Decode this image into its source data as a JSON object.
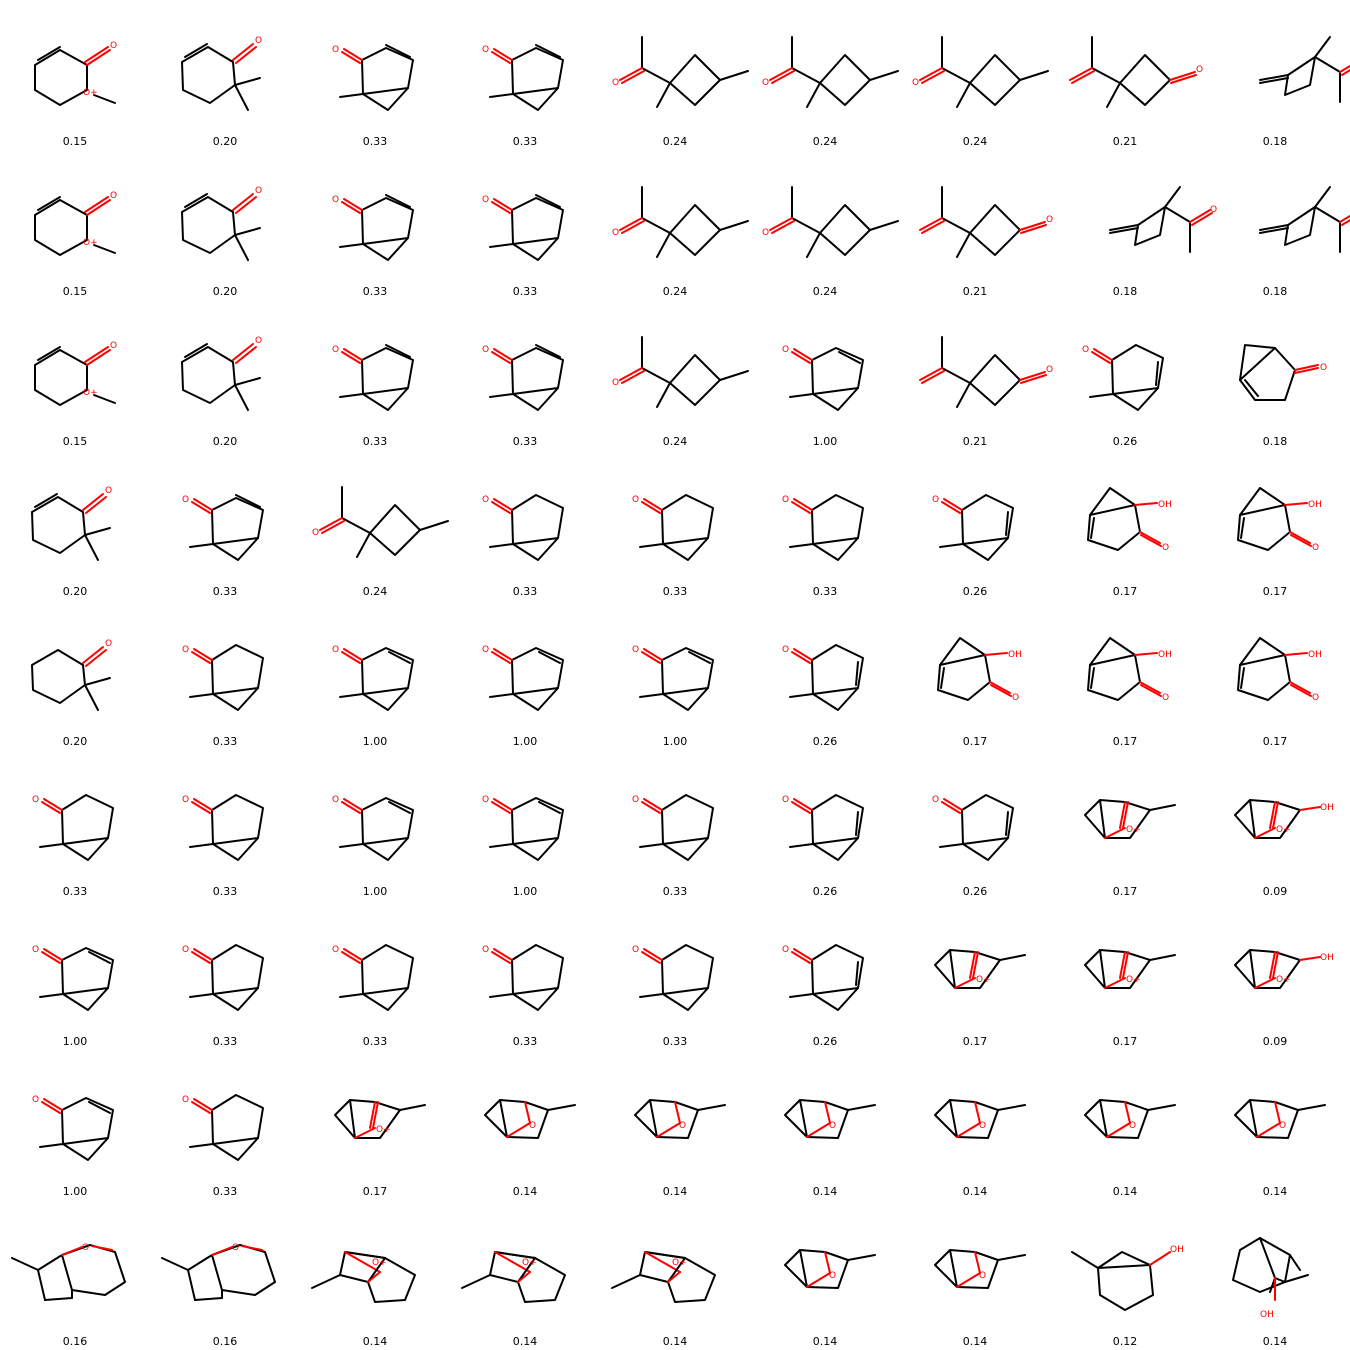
{
  "grid": {
    "rows": 9,
    "cols": 9,
    "cells": [
      {
        "mol": "lactone_yne",
        "score": "0.15"
      },
      {
        "mol": "cyclohexenone_yne",
        "score": "0.20"
      },
      {
        "mol": "bicyclic_ketone_yne",
        "score": "0.33"
      },
      {
        "mol": "bicyclic_ketone_yne",
        "score": "0.33"
      },
      {
        "mol": "acetyl_cyclobutane",
        "score": "0.24"
      },
      {
        "mol": "acetyl_cyclobutane",
        "score": "0.24"
      },
      {
        "mol": "acetyl_cyclobutane",
        "score": "0.24"
      },
      {
        "mol": "acetyl_cyclobutanone",
        "score": "0.21"
      },
      {
        "mol": "methylene_cyclobutane",
        "score": "0.18"
      },
      {
        "mol": "lactone_yne",
        "score": "0.15"
      },
      {
        "mol": "cyclohexenone_yne",
        "score": "0.20"
      },
      {
        "mol": "bicyclic_ketone_yne",
        "score": "0.33"
      },
      {
        "mol": "bicyclic_ketone_yne",
        "score": "0.33"
      },
      {
        "mol": "acetyl_cyclobutane",
        "score": "0.24"
      },
      {
        "mol": "acetyl_cyclobutane",
        "score": "0.24"
      },
      {
        "mol": "acetyl_cyclobutanone",
        "score": "0.21"
      },
      {
        "mol": "methylene_cyclobutane",
        "score": "0.18"
      },
      {
        "mol": "methylene_cyclobutane",
        "score": "0.18"
      },
      {
        "mol": "lactone_yne",
        "score": "0.15"
      },
      {
        "mol": "cyclohexenone_yne",
        "score": "0.20"
      },
      {
        "mol": "bicyclic_ketone_yne",
        "score": "0.33"
      },
      {
        "mol": "bicyclic_ketone_yne",
        "score": "0.33"
      },
      {
        "mol": "acetyl_cyclobutane",
        "score": "0.24"
      },
      {
        "mol": "bicyclic_enone",
        "score": "1.00"
      },
      {
        "mol": "acetyl_cyclobutanone",
        "score": "0.21"
      },
      {
        "mol": "bicyclic_ketone_alkene",
        "score": "0.26"
      },
      {
        "mol": "bridged_enone",
        "score": "0.18"
      },
      {
        "mol": "cyclohexenone_yne",
        "score": "0.20"
      },
      {
        "mol": "bicyclic_ketone_yne",
        "score": "0.33"
      },
      {
        "mol": "acetyl_cyclobutane",
        "score": "0.24"
      },
      {
        "mol": "bicyclic_ketone",
        "score": "0.33"
      },
      {
        "mol": "bicyclic_ketone",
        "score": "0.33"
      },
      {
        "mol": "bicyclic_ketone",
        "score": "0.33"
      },
      {
        "mol": "bicyclic_ketone_alkene",
        "score": "0.26"
      },
      {
        "mol": "bridged_hydroxyketone",
        "score": "0.17"
      },
      {
        "mol": "bridged_hydroxyketone",
        "score": "0.17"
      },
      {
        "mol": "dimethyl_cyclohexanone",
        "score": "0.20"
      },
      {
        "mol": "bicyclic_ketone",
        "score": "0.33"
      },
      {
        "mol": "bicyclic_enone",
        "score": "1.00"
      },
      {
        "mol": "bicyclic_enone",
        "score": "1.00"
      },
      {
        "mol": "bicyclic_enone",
        "score": "1.00"
      },
      {
        "mol": "bicyclic_ketone_alkene",
        "score": "0.26"
      },
      {
        "mol": "bridged_hydroxyketone",
        "score": "0.17"
      },
      {
        "mol": "bridged_hydroxyketone",
        "score": "0.17"
      },
      {
        "mol": "bridged_hydroxyketone",
        "score": "0.17"
      },
      {
        "mol": "bicyclic_ketone",
        "score": "0.33"
      },
      {
        "mol": "bicyclic_ketone",
        "score": "0.33"
      },
      {
        "mol": "bicyclic_enone",
        "score": "1.00"
      },
      {
        "mol": "bicyclic_enone",
        "score": "1.00"
      },
      {
        "mol": "bicyclic_ketone",
        "score": "0.33"
      },
      {
        "mol": "bicyclic_ketone_alkene",
        "score": "0.26"
      },
      {
        "mol": "bicyclic_ketone_alkene",
        "score": "0.26"
      },
      {
        "mol": "oxonium_cage_methyl",
        "score": "0.17"
      },
      {
        "mol": "oxonium_cage_oh",
        "score": "0.09"
      },
      {
        "mol": "bicyclic_enone",
        "score": "1.00"
      },
      {
        "mol": "bicyclic_ketone",
        "score": "0.33"
      },
      {
        "mol": "bicyclic_ketone",
        "score": "0.33"
      },
      {
        "mol": "bicyclic_ketone",
        "score": "0.33"
      },
      {
        "mol": "bicyclic_ketone",
        "score": "0.33"
      },
      {
        "mol": "bicyclic_ketone_alkene",
        "score": "0.26"
      },
      {
        "mol": "oxonium_cage_methyl",
        "score": "0.17"
      },
      {
        "mol": "oxonium_cage_methyl",
        "score": "0.17"
      },
      {
        "mol": "oxonium_cage_oh",
        "score": "0.09"
      },
      {
        "mol": "bicyclic_enone",
        "score": "1.00"
      },
      {
        "mol": "bicyclic_ketone",
        "score": "0.33"
      },
      {
        "mol": "oxonium_cage_methyl",
        "score": "0.17"
      },
      {
        "mol": "oxa_cage",
        "score": "0.14"
      },
      {
        "mol": "oxa_cage",
        "score": "0.14"
      },
      {
        "mol": "oxa_cage",
        "score": "0.14"
      },
      {
        "mol": "oxa_cage",
        "score": "0.14"
      },
      {
        "mol": "oxa_cage",
        "score": "0.14"
      },
      {
        "mol": "oxa_cage",
        "score": "0.14"
      },
      {
        "mol": "oxabicyclo_fused",
        "score": "0.16"
      },
      {
        "mol": "oxabicyclo_fused",
        "score": "0.16"
      },
      {
        "mol": "oxonium_tricycle",
        "score": "0.14"
      },
      {
        "mol": "oxonium_tricycle",
        "score": "0.14"
      },
      {
        "mol": "oxonium_tricycle",
        "score": "0.14"
      },
      {
        "mol": "oxa_cage_b",
        "score": "0.14"
      },
      {
        "mol": "oxa_cage_b",
        "score": "0.14"
      },
      {
        "mol": "methyl_cyclohexanol_bridge",
        "score": "0.12"
      },
      {
        "mol": "tricyclic_alcohol",
        "score": "0.14"
      }
    ]
  },
  "atom_labels": {
    "O": "O",
    "O_plus": "O+",
    "OH": "OH",
    "color_oxygen": "#ff0000",
    "color_bond": "#000000"
  }
}
